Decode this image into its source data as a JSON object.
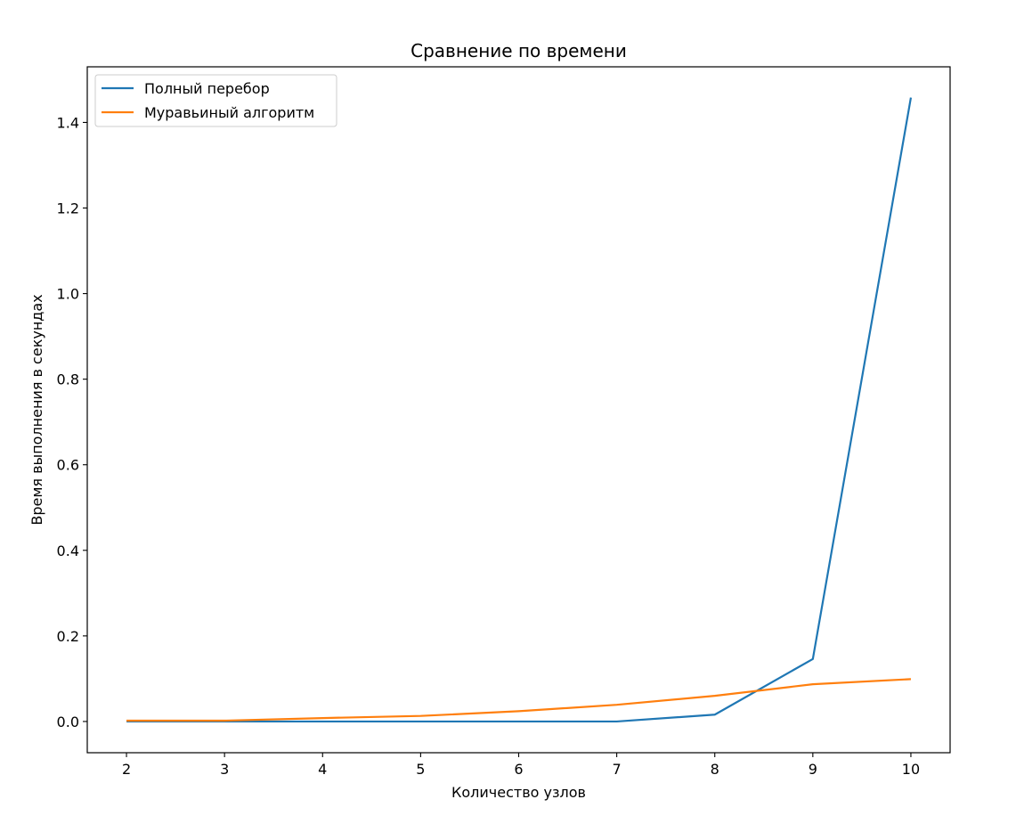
{
  "chart_data": {
    "type": "line",
    "title": "Сравнение по времени",
    "xlabel": "Количество узлов",
    "ylabel": "Время выполнения в секундах",
    "x": [
      2,
      3,
      4,
      5,
      6,
      7,
      8,
      9,
      10
    ],
    "xlim": [
      1.6,
      10.4
    ],
    "ylim": [
      -0.073,
      1.53
    ],
    "x_ticks": [
      "2",
      "3",
      "4",
      "5",
      "6",
      "7",
      "8",
      "9",
      "10"
    ],
    "y_ticks": [
      "0.0",
      "0.2",
      "0.4",
      "0.6",
      "0.8",
      "1.0",
      "1.2",
      "1.4"
    ],
    "y_tick_values": [
      0.0,
      0.2,
      0.4,
      0.6,
      0.8,
      1.0,
      1.2,
      1.4
    ],
    "grid": false,
    "legend_position": "upper-left",
    "series": [
      {
        "name": "Полный перебор",
        "color": "#1f77b4",
        "values": [
          0.0,
          0.0,
          0.0,
          0.0,
          0.0,
          0.0,
          0.016,
          0.146,
          1.458
        ]
      },
      {
        "name": "Муравьиный алгоритм",
        "color": "#ff7f0e",
        "values": [
          0.002,
          0.002,
          0.008,
          0.013,
          0.024,
          0.039,
          0.06,
          0.087,
          0.099
        ]
      }
    ]
  }
}
